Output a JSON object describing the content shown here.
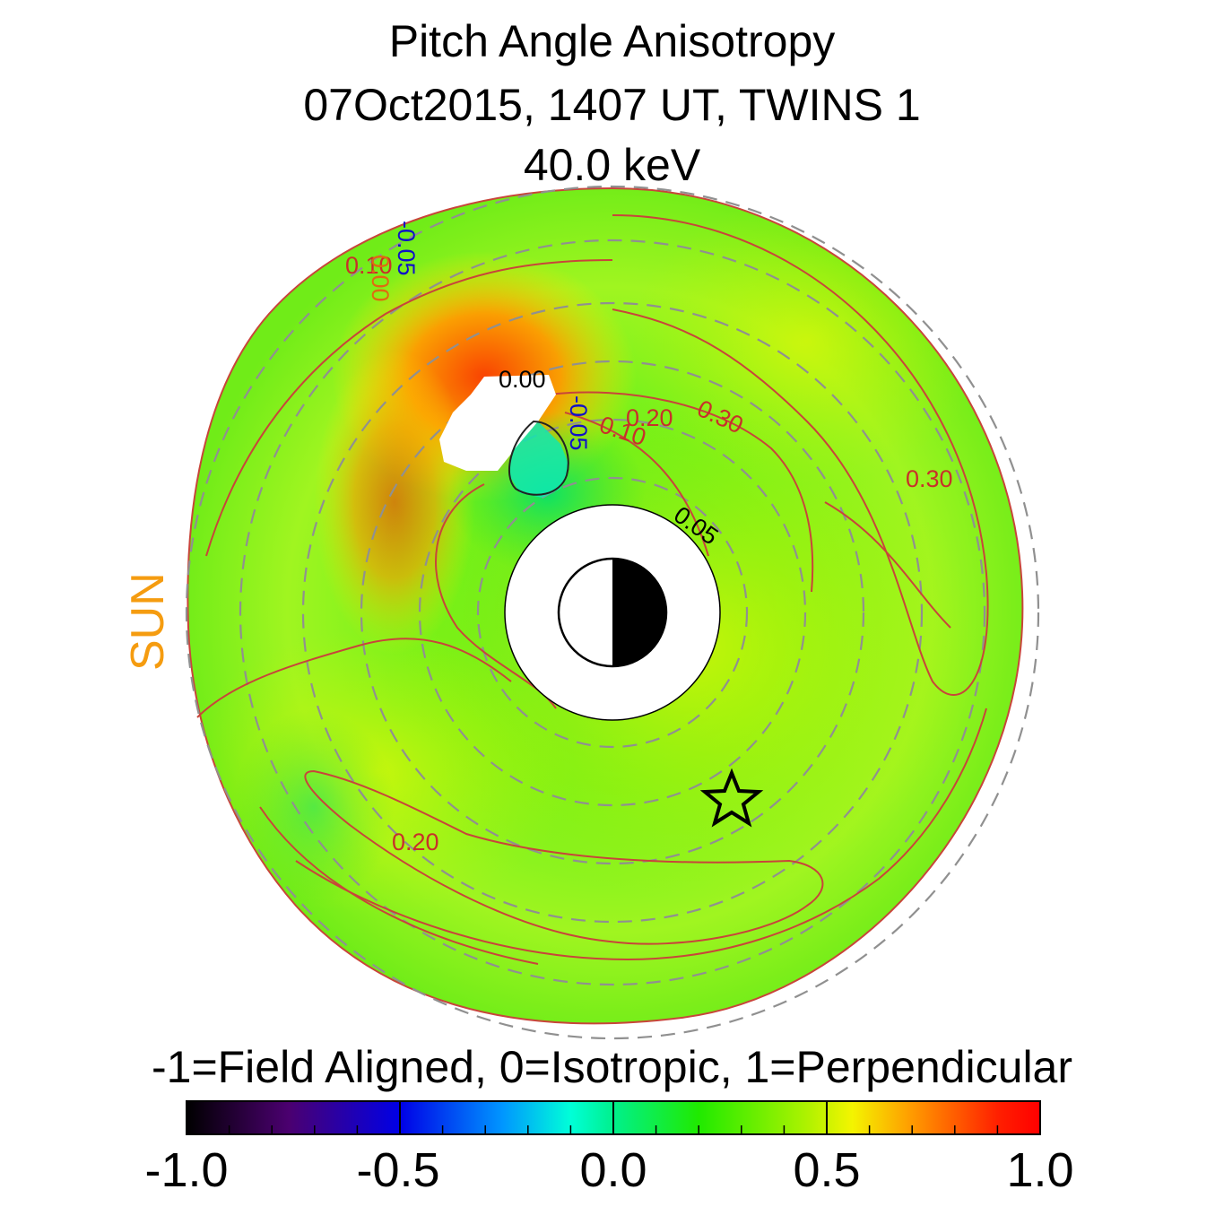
{
  "title": {
    "line1": "Pitch Angle Anisotropy",
    "line2": "07Oct2015, 1407 UT,  TWINS 1",
    "line3": "40.0 keV"
  },
  "sun_label": "SUN",
  "colors": {
    "sun_label": "#f59c10",
    "contour_line": "#c8453a",
    "contour_label_red": "#c8302a",
    "contour_label_black": "#000000",
    "contour_label_blue": "#1010c8",
    "dashed_ring": "#909090",
    "background_field": "#7ff200",
    "high_anisotropy": "#ff5a00",
    "low_anisotropy": "#00e870"
  },
  "colorbar": {
    "caption": "-1=Field Aligned, 0=Isotropic, 1=Perpendicular",
    "min": -1.0,
    "max": 1.0,
    "tick_labels": [
      "-1.0",
      "-0.5",
      "0.0",
      "0.5",
      "1.0"
    ],
    "colormap": "rainbow (black-purple-blue-cyan-green-yellow-orange-red)"
  },
  "chart_data": {
    "type": "heatmap",
    "projection": "polar equatorial map, Sun to the left",
    "quantity": "Pitch Angle Anisotropy",
    "value_range": [
      -1.0,
      1.0
    ],
    "contour_labels": [
      {
        "text": "0.00",
        "color": "black"
      },
      {
        "text": "-0.05",
        "color": "blue"
      },
      {
        "text": "0.10",
        "color": "red"
      },
      {
        "text": "0.20",
        "color": "red"
      },
      {
        "text": "0.30",
        "color": "red"
      },
      {
        "text": "0.30",
        "color": "red"
      },
      {
        "text": "0.05",
        "color": "black"
      },
      {
        "text": "0.20",
        "color": "red"
      },
      {
        "text": "0.10",
        "color": "red"
      },
      {
        "text": "0.00",
        "color": "orange"
      },
      {
        "text": "-0.05",
        "color": "blue"
      }
    ],
    "dashed_rings_count": 6,
    "markers": [
      "earth-symbol-center",
      "star-marker"
    ]
  }
}
